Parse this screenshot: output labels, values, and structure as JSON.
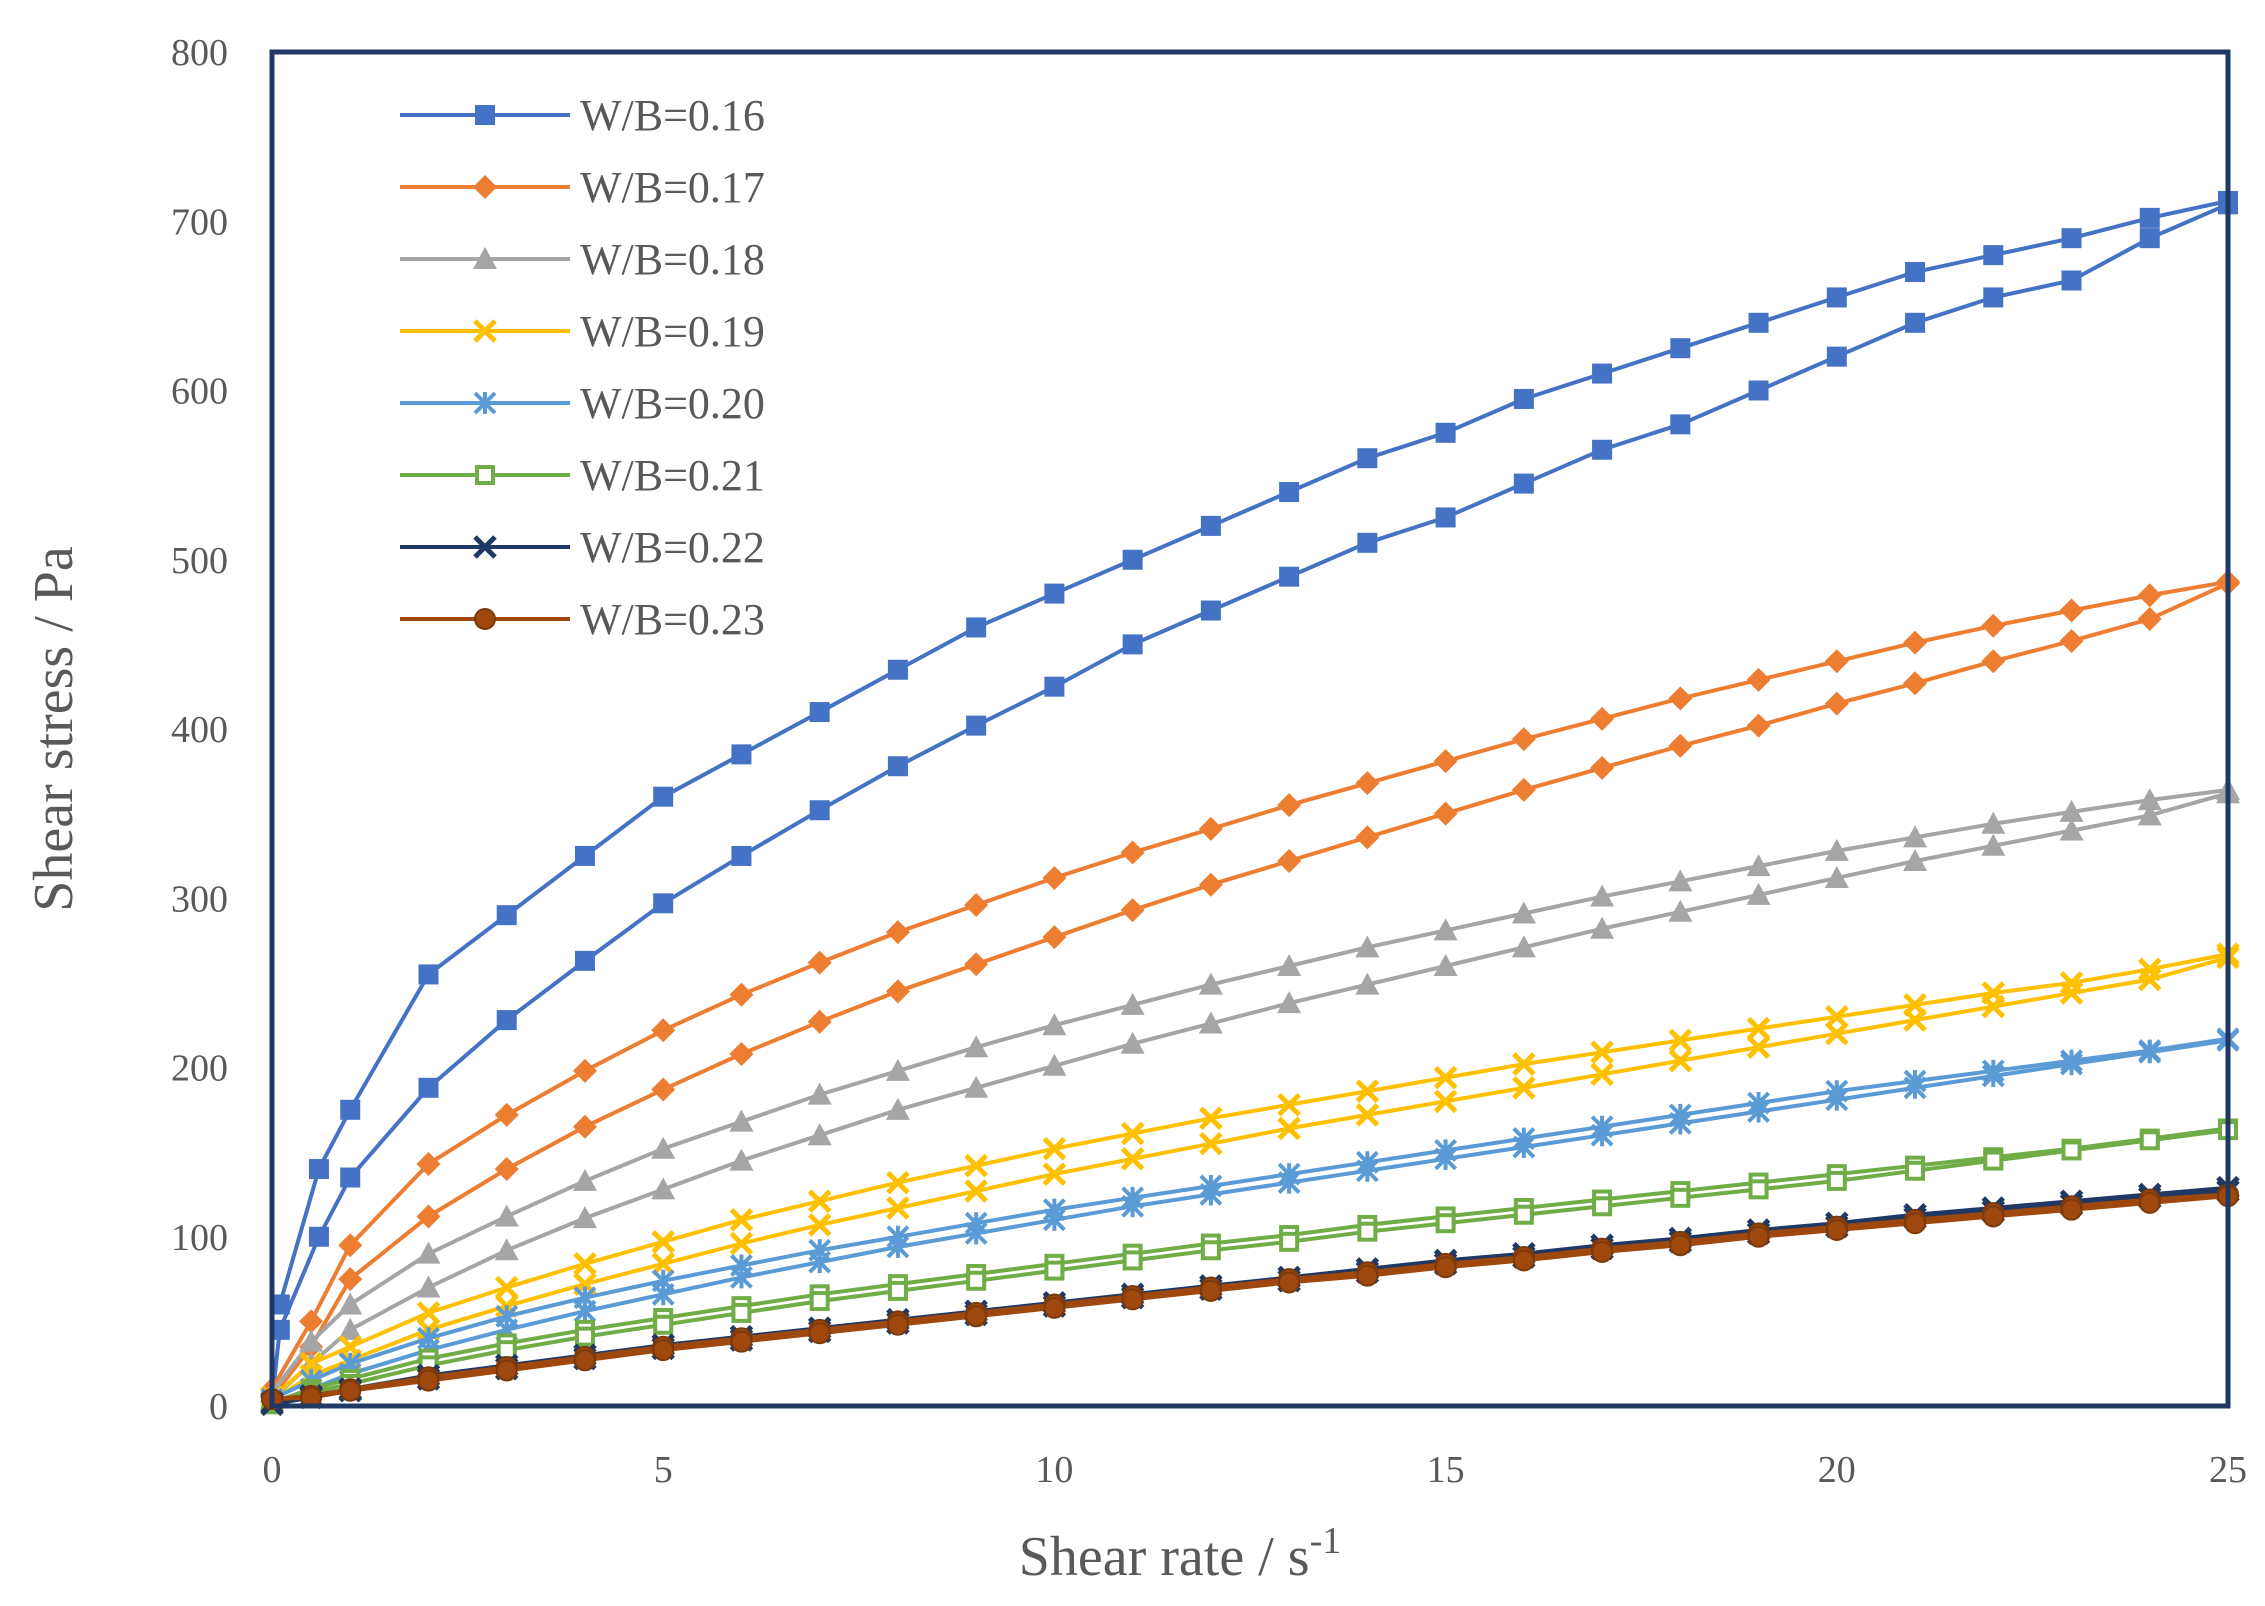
{
  "chart_data": {
    "type": "line",
    "title": "",
    "xlabel": "Shear rate / s",
    "xlabel_superscript": "-1",
    "ylabel": "Shear stress / Pa",
    "xlim": [
      0,
      25
    ],
    "ylim": [
      0,
      800
    ],
    "xticks": [
      0,
      5,
      10,
      15,
      20,
      25
    ],
    "yticks": [
      0,
      100,
      200,
      300,
      400,
      500,
      600,
      700,
      800
    ],
    "grid": false,
    "legend_position": "top-left",
    "frame_color": "#203864",
    "series": [
      {
        "name": "W/B=0.16",
        "color": "#4472C4",
        "marker": "square",
        "up_x": [
          0.1,
          0.6,
          1,
          2,
          3,
          4,
          5,
          6,
          7,
          8,
          9,
          10,
          11,
          12,
          13,
          14,
          15,
          16,
          17,
          18,
          19,
          20,
          21,
          22,
          23,
          24,
          25
        ],
        "up_y": [
          60,
          140,
          175,
          255,
          290,
          325,
          360,
          385,
          410,
          435,
          460,
          480,
          500,
          520,
          540,
          560,
          575,
          595,
          610,
          625,
          640,
          655,
          670,
          680,
          690,
          702,
          712
        ],
        "down_x": [
          0,
          0.1,
          0.6,
          1,
          2,
          3,
          4,
          5,
          6,
          7,
          8,
          9,
          10,
          11,
          12,
          13,
          14,
          15,
          16,
          17,
          18,
          19,
          20,
          21,
          22,
          23,
          24,
          25
        ],
        "down_y": [
          3,
          45,
          100,
          135,
          188,
          228,
          263,
          297,
          325,
          352,
          378,
          402,
          425,
          450,
          470,
          490,
          510,
          525,
          545,
          565,
          580,
          600,
          620,
          640,
          655,
          665,
          690,
          710
        ]
      },
      {
        "name": "W/B=0.17",
        "color": "#ED7D31",
        "marker": "diamond",
        "up_x": [
          0,
          0.5,
          1,
          2,
          3,
          4,
          5,
          6,
          7,
          8,
          9,
          10,
          11,
          12,
          13,
          14,
          15,
          16,
          17,
          18,
          19,
          20,
          21,
          22,
          23,
          24,
          25
        ],
        "up_y": [
          10,
          50,
          95,
          143,
          172,
          198,
          222,
          243,
          262,
          280,
          296,
          312,
          327,
          341,
          355,
          368,
          381,
          394,
          406,
          418,
          429,
          440,
          451,
          461,
          470,
          479,
          487
        ],
        "down_x": [
          0,
          0.5,
          1,
          2,
          3,
          4,
          5,
          6,
          7,
          8,
          9,
          10,
          11,
          12,
          13,
          14,
          15,
          16,
          17,
          18,
          19,
          20,
          21,
          22,
          23,
          24,
          25
        ],
        "down_y": [
          5,
          35,
          75,
          112,
          140,
          165,
          187,
          208,
          227,
          245,
          261,
          277,
          293,
          308,
          322,
          336,
          350,
          364,
          377,
          390,
          402,
          415,
          427,
          440,
          452,
          465,
          486
        ]
      },
      {
        "name": "W/B=0.18",
        "color": "#A5A5A5",
        "marker": "triangle",
        "up_x": [
          0,
          0.5,
          1,
          2,
          3,
          4,
          5,
          6,
          7,
          8,
          9,
          10,
          11,
          12,
          13,
          14,
          15,
          16,
          17,
          18,
          19,
          20,
          21,
          22,
          23,
          24,
          25
        ],
        "up_y": [
          8,
          38,
          60,
          90,
          112,
          133,
          152,
          168,
          184,
          198,
          212,
          225,
          237,
          249,
          260,
          271,
          281,
          291,
          301,
          310,
          319,
          328,
          336,
          344,
          351,
          358,
          364
        ],
        "down_x": [
          0,
          0.5,
          1,
          2,
          3,
          4,
          5,
          6,
          7,
          8,
          9,
          10,
          11,
          12,
          13,
          14,
          15,
          16,
          17,
          18,
          19,
          20,
          21,
          22,
          23,
          24,
          25
        ],
        "down_y": [
          4,
          25,
          45,
          70,
          92,
          111,
          128,
          145,
          160,
          175,
          188,
          201,
          214,
          226,
          238,
          249,
          260,
          271,
          282,
          292,
          302,
          312,
          322,
          331,
          340,
          349,
          362
        ]
      },
      {
        "name": "W/B=0.19",
        "color": "#FFC000",
        "marker": "x",
        "up_x": [
          0,
          0.5,
          1,
          2,
          3,
          4,
          5,
          6,
          7,
          8,
          9,
          10,
          11,
          12,
          13,
          14,
          15,
          16,
          17,
          18,
          19,
          20,
          21,
          22,
          23,
          24,
          25
        ],
        "up_y": [
          5,
          25,
          35,
          55,
          70,
          84,
          97,
          110,
          121,
          132,
          142,
          152,
          161,
          170,
          178,
          186,
          194,
          202,
          209,
          216,
          223,
          230,
          237,
          244,
          250,
          258,
          267
        ],
        "down_x": [
          0,
          0.5,
          1,
          2,
          3,
          4,
          5,
          6,
          7,
          8,
          9,
          10,
          11,
          12,
          13,
          14,
          15,
          16,
          17,
          18,
          19,
          20,
          21,
          22,
          23,
          24,
          25
        ],
        "down_y": [
          3,
          18,
          27,
          45,
          59,
          72,
          84,
          96,
          107,
          117,
          127,
          137,
          146,
          155,
          164,
          172,
          180,
          188,
          196,
          204,
          212,
          220,
          228,
          236,
          244,
          252,
          265
        ]
      },
      {
        "name": "W/B=0.20",
        "color": "#5B9BD5",
        "marker": "star",
        "up_x": [
          0,
          0.5,
          1,
          2,
          3,
          4,
          5,
          6,
          7,
          8,
          9,
          10,
          11,
          12,
          13,
          14,
          15,
          16,
          17,
          18,
          19,
          20,
          21,
          22,
          23,
          24,
          25
        ],
        "up_y": [
          4,
          15,
          25,
          40,
          53,
          64,
          74,
          83,
          92,
          100,
          108,
          116,
          123,
          130,
          137,
          144,
          151,
          158,
          165,
          172,
          179,
          186,
          192,
          198,
          204,
          210,
          217
        ],
        "down_x": [
          0,
          0.5,
          1,
          2,
          3,
          4,
          5,
          6,
          7,
          8,
          9,
          10,
          11,
          12,
          13,
          14,
          15,
          16,
          17,
          18,
          19,
          20,
          21,
          22,
          23,
          24,
          25
        ],
        "down_y": [
          2,
          10,
          19,
          33,
          45,
          56,
          66,
          76,
          85,
          94,
          102,
          110,
          118,
          125,
          132,
          139,
          146,
          153,
          160,
          167,
          174,
          181,
          188,
          195,
          202,
          209,
          216
        ]
      },
      {
        "name": "W/B=0.21",
        "color": "#70AD47",
        "marker": "square-open",
        "up_x": [
          0,
          0.5,
          1,
          2,
          3,
          4,
          5,
          6,
          7,
          8,
          9,
          10,
          11,
          12,
          13,
          14,
          15,
          16,
          17,
          18,
          19,
          20,
          21,
          22,
          23,
          24,
          25
        ],
        "up_y": [
          2,
          10,
          16,
          28,
          37,
          45,
          52,
          59,
          66,
          72,
          78,
          84,
          90,
          96,
          101,
          107,
          112,
          117,
          122,
          127,
          132,
          137,
          142,
          147,
          152,
          158,
          164
        ],
        "down_x": [
          0,
          0.5,
          1,
          2,
          3,
          4,
          5,
          6,
          7,
          8,
          9,
          10,
          11,
          12,
          13,
          14,
          15,
          16,
          17,
          18,
          19,
          20,
          21,
          22,
          23,
          24,
          25
        ],
        "down_y": [
          1,
          8,
          13,
          24,
          33,
          41,
          48,
          55,
          62,
          68,
          74,
          80,
          86,
          92,
          97,
          103,
          108,
          113,
          118,
          123,
          128,
          133,
          139,
          145,
          151,
          157,
          163
        ]
      },
      {
        "name": "W/B=0.22",
        "color": "#203864",
        "marker": "x",
        "up_x": [
          0,
          0.5,
          1,
          2,
          3,
          4,
          5,
          6,
          7,
          8,
          9,
          10,
          11,
          12,
          13,
          14,
          15,
          16,
          17,
          18,
          19,
          20,
          21,
          22,
          23,
          24,
          25
        ],
        "up_y": [
          2,
          6,
          10,
          18,
          24,
          30,
          36,
          41,
          46,
          51,
          56,
          61,
          66,
          71,
          76,
          81,
          86,
          90,
          95,
          99,
          104,
          108,
          113,
          117,
          121,
          125,
          129
        ],
        "down_x": [
          0,
          0.5,
          1,
          2,
          3,
          4,
          5,
          6,
          7,
          8,
          9,
          10,
          11,
          12,
          13,
          14,
          15,
          16,
          17,
          18,
          19,
          20,
          21,
          22,
          23,
          24,
          25
        ],
        "down_y": [
          1,
          5,
          9,
          16,
          22,
          28,
          34,
          39,
          44,
          49,
          54,
          59,
          64,
          69,
          74,
          79,
          84,
          88,
          93,
          97,
          102,
          106,
          111,
          115,
          119,
          123,
          127
        ]
      },
      {
        "name": "W/B=0.23",
        "color": "#9E480E",
        "marker": "circle",
        "up_x": [
          0,
          0.5,
          1,
          2,
          3,
          4,
          5,
          6,
          7,
          8,
          9,
          10,
          11,
          12,
          13,
          14,
          15,
          16,
          17,
          18,
          19,
          20,
          21,
          22,
          23,
          24,
          25
        ],
        "up_y": [
          4,
          6,
          10,
          17,
          23,
          29,
          35,
          40,
          45,
          50,
          55,
          60,
          65,
          70,
          75,
          79,
          84,
          88,
          93,
          97,
          102,
          106,
          110,
          114,
          118,
          122,
          125
        ],
        "down_x": [
          0,
          0.5,
          1,
          2,
          3,
          4,
          5,
          6,
          7,
          8,
          9,
          10,
          11,
          12,
          13,
          14,
          15,
          16,
          17,
          18,
          19,
          20,
          21,
          22,
          23,
          24,
          25
        ],
        "down_y": [
          4,
          5,
          9,
          15,
          21,
          27,
          33,
          38,
          43,
          48,
          53,
          58,
          63,
          68,
          73,
          77,
          82,
          86,
          91,
          95,
          100,
          104,
          108,
          112,
          116,
          120,
          124
        ]
      }
    ]
  }
}
